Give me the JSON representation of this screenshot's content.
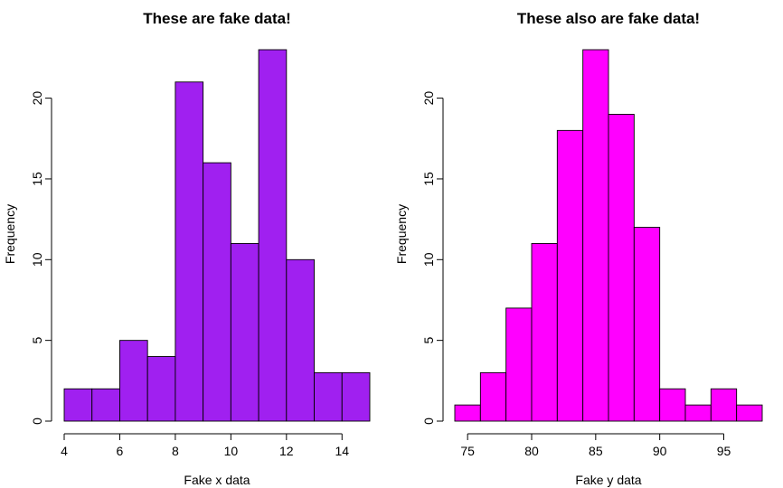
{
  "chart_data": [
    {
      "type": "bar",
      "title": "These are fake data!",
      "xlabel": "Fake x data",
      "ylabel": "Frequency",
      "color": "#A020F0",
      "bin_edges": [
        4,
        5,
        6,
        7,
        8,
        9,
        10,
        11,
        12,
        13,
        14,
        15
      ],
      "values": [
        2,
        2,
        5,
        4,
        21,
        16,
        11,
        23,
        10,
        3,
        3
      ],
      "xlim": [
        4,
        15
      ],
      "ylim": [
        0,
        23
      ],
      "x_ticks": [
        4,
        6,
        8,
        10,
        12,
        14
      ],
      "y_ticks": [
        0,
        5,
        10,
        15,
        20
      ],
      "grid": false
    },
    {
      "type": "bar",
      "title": "These also are fake data!",
      "xlabel": "Fake y data",
      "ylabel": "Frequency",
      "color": "#FF00FF",
      "bin_edges": [
        74,
        76,
        78,
        80,
        82,
        84,
        86,
        88,
        90,
        92,
        94,
        96,
        98
      ],
      "values": [
        1,
        3,
        7,
        11,
        18,
        23,
        19,
        12,
        2,
        1,
        2,
        1
      ],
      "xlim": [
        74,
        98
      ],
      "ylim": [
        0,
        23
      ],
      "x_ticks": [
        75,
        80,
        85,
        90,
        95
      ],
      "y_ticks": [
        0,
        5,
        10,
        15,
        20
      ],
      "grid": false
    }
  ]
}
